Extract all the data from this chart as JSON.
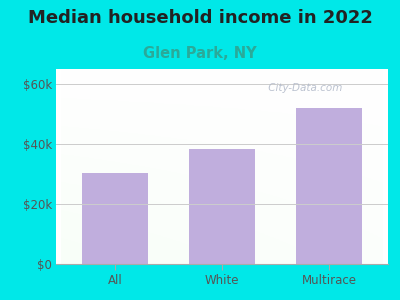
{
  "title": "Median household income in 2022",
  "subtitle": "Glen Park, NY",
  "categories": [
    "All",
    "White",
    "Multirace"
  ],
  "values": [
    30500,
    38500,
    52000
  ],
  "bar_color": "#c0aedd",
  "background_color": "#00e8e8",
  "title_color": "#222222",
  "subtitle_color": "#2aaa99",
  "tick_label_color": "#555555",
  "ylim": [
    0,
    65000
  ],
  "yticks": [
    0,
    20000,
    40000,
    60000
  ],
  "ytick_labels": [
    "$0",
    "$20k",
    "$40k",
    "$60k"
  ],
  "watermark": " City-Data.com",
  "title_fontsize": 13,
  "subtitle_fontsize": 10.5,
  "grid_color": "#cccccc",
  "spine_color": "#aaaaaa"
}
